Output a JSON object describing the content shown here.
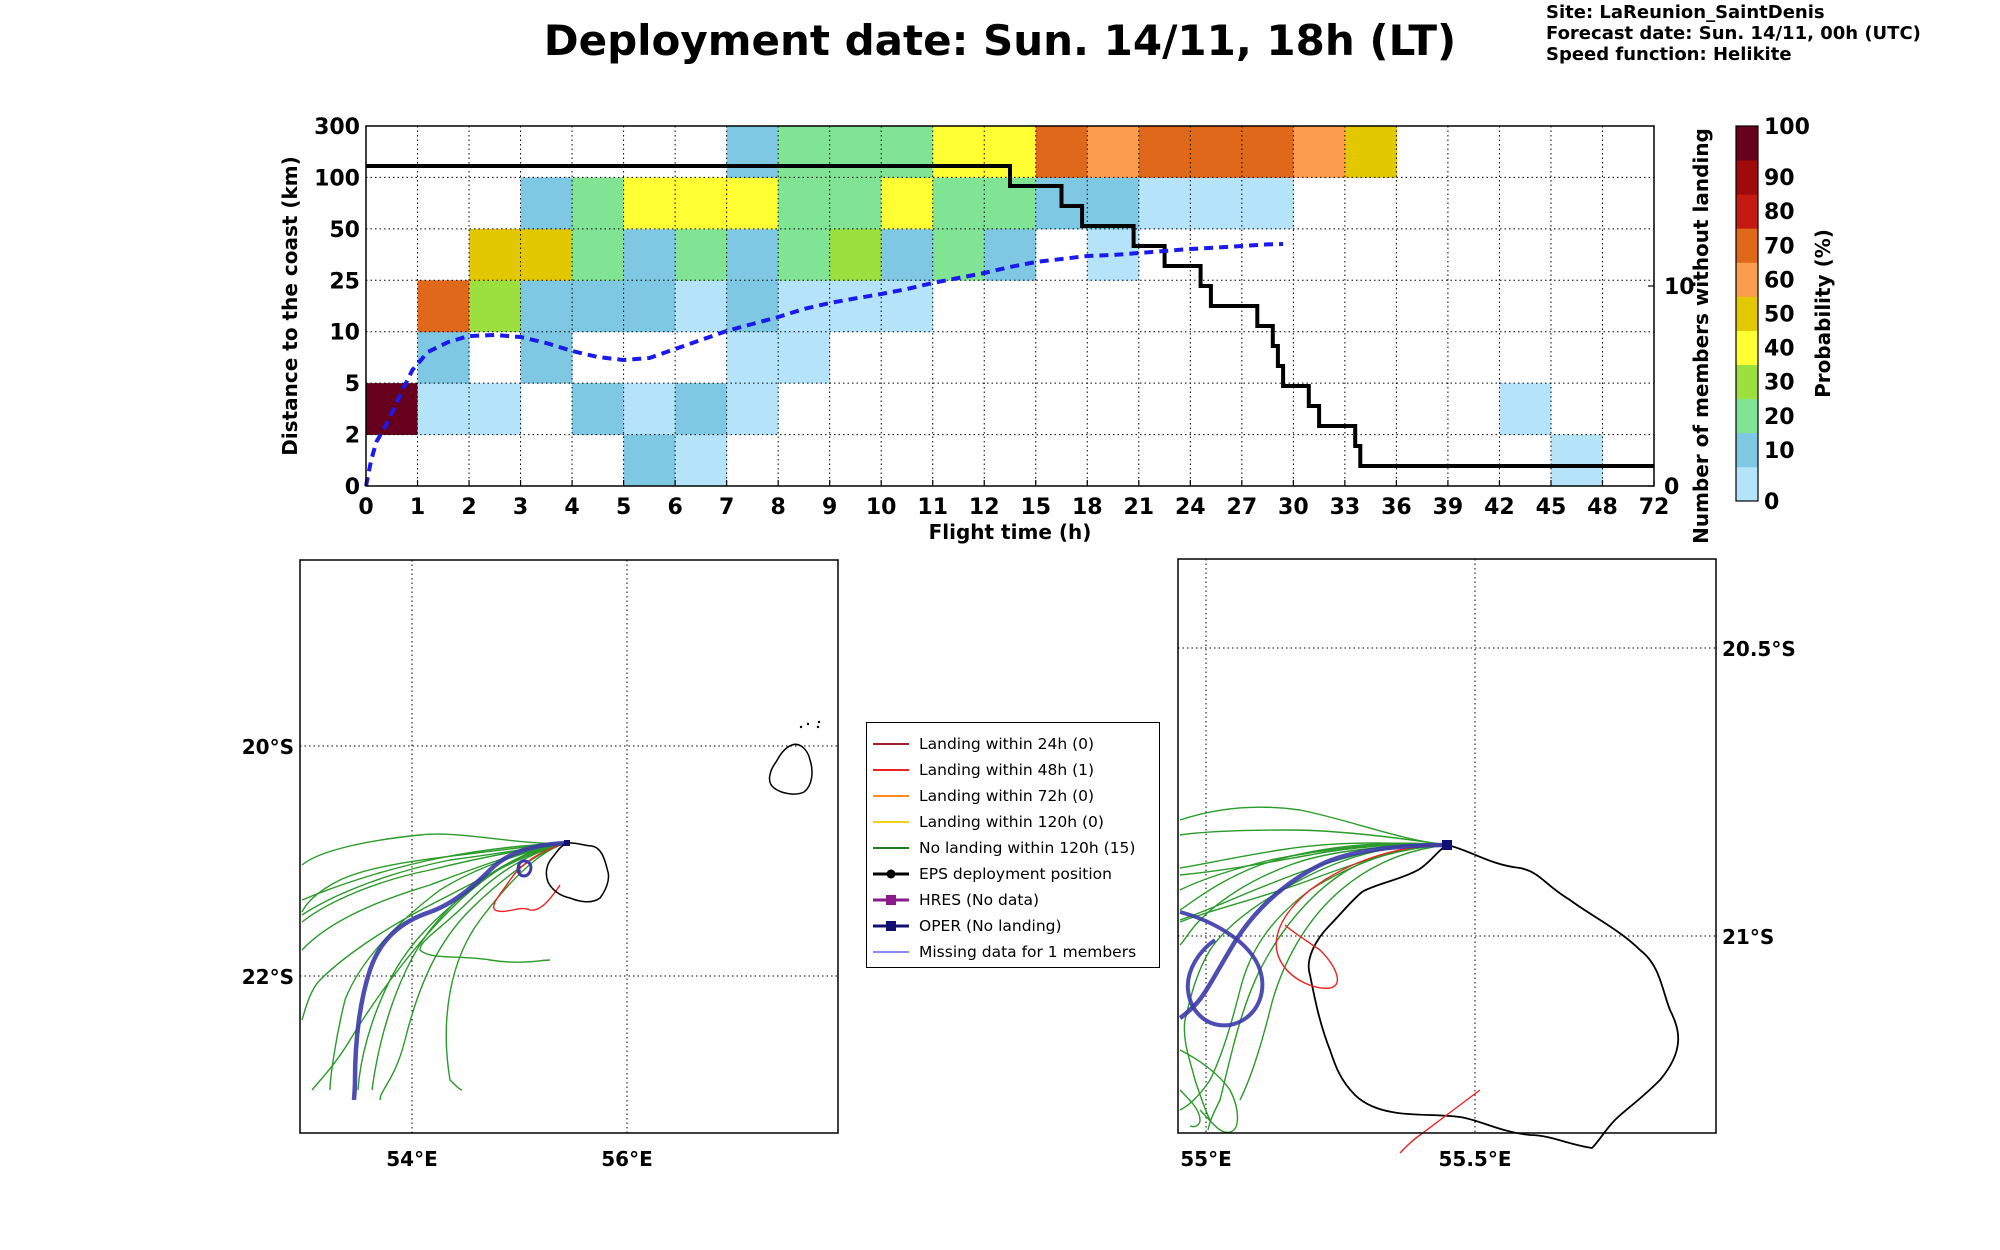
{
  "title": "Deployment date: Sun. 14/11, 18h (LT)",
  "info": {
    "site": "Site: LaReunion_SaintDenis",
    "forecast": "Forecast date: Sun. 14/11, 00h (UTC)",
    "speed": "Speed function: Helikite"
  },
  "chart_data": [
    {
      "type": "heatmap",
      "xlabel": "Flight time (h)",
      "ylabel": "Distance to the coast (km)",
      "ylabel_right": "Number of members without landing",
      "x_ticks": [
        "0",
        "1",
        "2",
        "3",
        "4",
        "5",
        "6",
        "7",
        "8",
        "9",
        "10",
        "11",
        "12",
        "15",
        "18",
        "21",
        "24",
        "27",
        "30",
        "33",
        "36",
        "39",
        "42",
        "45",
        "48",
        "72"
      ],
      "y_ticks": [
        "0",
        "2",
        "5",
        "10",
        "25",
        "50",
        "100",
        "300"
      ],
      "right_ticks": [
        "0",
        "10"
      ],
      "colorbar": {
        "label": "Probability (%)",
        "ticks": [
          "0",
          "10",
          "20",
          "30",
          "40",
          "50",
          "60",
          "70",
          "80",
          "90",
          "100"
        ],
        "colors": [
          "#b5e4fa",
          "#7ec8e3",
          "#81e394",
          "#9be03e",
          "#ffff33",
          "#e2c800",
          "#fc9d4e",
          "#e0681a",
          "#c41a12",
          "#a10a0a",
          "#67001d"
        ]
      },
      "grid": true,
      "cells_note": "each cell = [x bin index, distance bin index, probability class index]",
      "cells": [
        [
          0,
          1,
          10
        ],
        [
          1,
          1,
          0
        ],
        [
          2,
          1,
          0
        ],
        [
          4,
          1,
          1
        ],
        [
          5,
          1,
          0
        ],
        [
          6,
          1,
          1
        ],
        [
          7,
          1,
          0
        ],
        [
          22,
          1,
          0
        ],
        [
          5,
          0,
          1
        ],
        [
          6,
          0,
          0
        ],
        [
          23,
          0,
          0
        ],
        [
          1,
          2,
          1
        ],
        [
          3,
          2,
          1
        ],
        [
          7,
          2,
          0
        ],
        [
          8,
          2,
          0
        ],
        [
          1,
          3,
          7
        ],
        [
          2,
          3,
          3
        ],
        [
          3,
          3,
          1
        ],
        [
          4,
          3,
          1
        ],
        [
          5,
          3,
          1
        ],
        [
          6,
          3,
          0
        ],
        [
          7,
          3,
          1
        ],
        [
          8,
          3,
          0
        ],
        [
          9,
          3,
          0
        ],
        [
          10,
          3,
          0
        ],
        [
          2,
          4,
          5
        ],
        [
          3,
          4,
          5
        ],
        [
          4,
          4,
          2
        ],
        [
          5,
          4,
          1
        ],
        [
          6,
          4,
          2
        ],
        [
          7,
          4,
          1
        ],
        [
          8,
          4,
          2
        ],
        [
          9,
          4,
          3
        ],
        [
          10,
          4,
          1
        ],
        [
          11,
          4,
          2
        ],
        [
          12,
          4,
          1
        ],
        [
          14,
          4,
          0
        ],
        [
          3,
          5,
          1
        ],
        [
          4,
          5,
          2
        ],
        [
          5,
          5,
          4
        ],
        [
          6,
          5,
          4
        ],
        [
          7,
          5,
          4
        ],
        [
          8,
          5,
          2
        ],
        [
          9,
          5,
          2
        ],
        [
          10,
          5,
          4
        ],
        [
          11,
          5,
          2
        ],
        [
          12,
          5,
          2
        ],
        [
          13,
          5,
          1
        ],
        [
          14,
          5,
          1
        ],
        [
          15,
          5,
          0
        ],
        [
          16,
          5,
          0
        ],
        [
          17,
          5,
          0
        ],
        [
          7,
          6,
          1
        ],
        [
          8,
          6,
          2
        ],
        [
          9,
          6,
          2
        ],
        [
          10,
          6,
          2
        ],
        [
          11,
          6,
          4
        ],
        [
          12,
          6,
          4
        ],
        [
          13,
          6,
          7
        ],
        [
          14,
          6,
          6
        ],
        [
          15,
          6,
          7
        ],
        [
          16,
          6,
          7
        ],
        [
          17,
          6,
          7
        ],
        [
          18,
          6,
          6
        ],
        [
          19,
          6,
          5
        ]
      ],
      "series": [
        {
          "name": "",
          "color": "#000000",
          "style": "step",
          "points": [
            [
              0,
              16
            ],
            [
              12.5,
              16
            ],
            [
              12.5,
              15
            ],
            [
              13.5,
              15
            ],
            [
              13.5,
              14
            ],
            [
              13.9,
              14
            ],
            [
              13.9,
              13
            ],
            [
              14.9,
              13
            ],
            [
              14.9,
              12
            ],
            [
              15.5,
              12
            ],
            [
              15.5,
              11
            ],
            [
              16.2,
              11
            ],
            [
              16.2,
              10
            ],
            [
              16.4,
              10
            ],
            [
              16.4,
              9
            ],
            [
              17.3,
              9
            ],
            [
              17.3,
              8
            ],
            [
              17.6,
              8
            ],
            [
              17.6,
              7
            ],
            [
              17.7,
              7
            ],
            [
              17.7,
              6
            ],
            [
              17.8,
              6
            ],
            [
              17.8,
              5
            ],
            [
              18.3,
              5
            ],
            [
              18.3,
              4
            ],
            [
              18.5,
              4
            ],
            [
              18.5,
              3
            ],
            [
              19.2,
              3
            ],
            [
              19.2,
              2
            ],
            [
              19.3,
              2
            ],
            [
              19.3,
              1
            ],
            [
              25,
              1
            ]
          ]
        },
        {
          "name": "",
          "color": "#1a1aee",
          "style": "dashed",
          "points": [
            [
              0,
              0
            ],
            [
              0.1,
              1.3
            ],
            [
              0.2,
              2.2
            ],
            [
              0.4,
              3.1
            ],
            [
              0.6,
              4.2
            ],
            [
              0.75,
              5.0
            ],
            [
              0.9,
              5.8
            ],
            [
              1.2,
              6.7
            ],
            [
              1.6,
              7.2
            ],
            [
              2.0,
              7.5
            ],
            [
              2.5,
              7.55
            ],
            [
              3.0,
              7.45
            ],
            [
              3.5,
              7.15
            ],
            [
              4.0,
              6.75
            ],
            [
              4.5,
              6.45
            ],
            [
              5.0,
              6.3
            ],
            [
              5.5,
              6.4
            ],
            [
              6.0,
              6.85
            ],
            [
              6.5,
              7.3
            ],
            [
              7.0,
              7.75
            ],
            [
              7.5,
              8.1
            ],
            [
              8.0,
              8.45
            ],
            [
              8.5,
              8.85
            ],
            [
              9.0,
              9.15
            ],
            [
              9.5,
              9.38
            ],
            [
              10.0,
              9.6
            ],
            [
              10.5,
              9.85
            ],
            [
              11.0,
              10.15
            ],
            [
              11.5,
              10.4
            ],
            [
              12.0,
              10.65
            ],
            [
              12.5,
              10.95
            ],
            [
              13.0,
              11.2
            ],
            [
              13.5,
              11.35
            ],
            [
              14.0,
              11.5
            ],
            [
              14.5,
              11.55
            ],
            [
              15.0,
              11.65
            ],
            [
              15.5,
              11.75
            ],
            [
              16.0,
              11.85
            ],
            [
              16.5,
              11.92
            ],
            [
              17.0,
              12.0
            ],
            [
              17.5,
              12.08
            ],
            [
              17.8,
              12.1
            ]
          ]
        }
      ]
    },
    {
      "type": "map",
      "x_ticks": [
        "54°E",
        "56°E"
      ],
      "y_ticks": [
        "20°S",
        "22°S"
      ]
    },
    {
      "type": "map",
      "x_ticks": [
        "55°E",
        "55.5°E"
      ],
      "y_ticks": [
        "20.5°S",
        "21°S"
      ]
    }
  ],
  "legend": [
    {
      "label": "Landing within 24h (0)",
      "color": "#a1212a",
      "kind": "line"
    },
    {
      "label": "Landing within 48h (1)",
      "color": "#ee2222",
      "kind": "line"
    },
    {
      "label": "Landing within 72h (0)",
      "color": "#ff8c1a",
      "kind": "line"
    },
    {
      "label": "Landing within 120h (0)",
      "color": "#f0d020",
      "kind": "line"
    },
    {
      "label": "No landing within 120h (15)",
      "color": "#1e7d1e",
      "kind": "line"
    },
    {
      "label": "EPS deployment position",
      "color": "#000000",
      "kind": "circle"
    },
    {
      "label": "HRES (No data)",
      "color": "#8b1a8b",
      "kind": "square"
    },
    {
      "label": "OPER (No landing)",
      "color": "#101070",
      "kind": "square"
    },
    {
      "label": "Missing data for 1 members",
      "color": "#4444ee",
      "kind": "thin"
    }
  ]
}
